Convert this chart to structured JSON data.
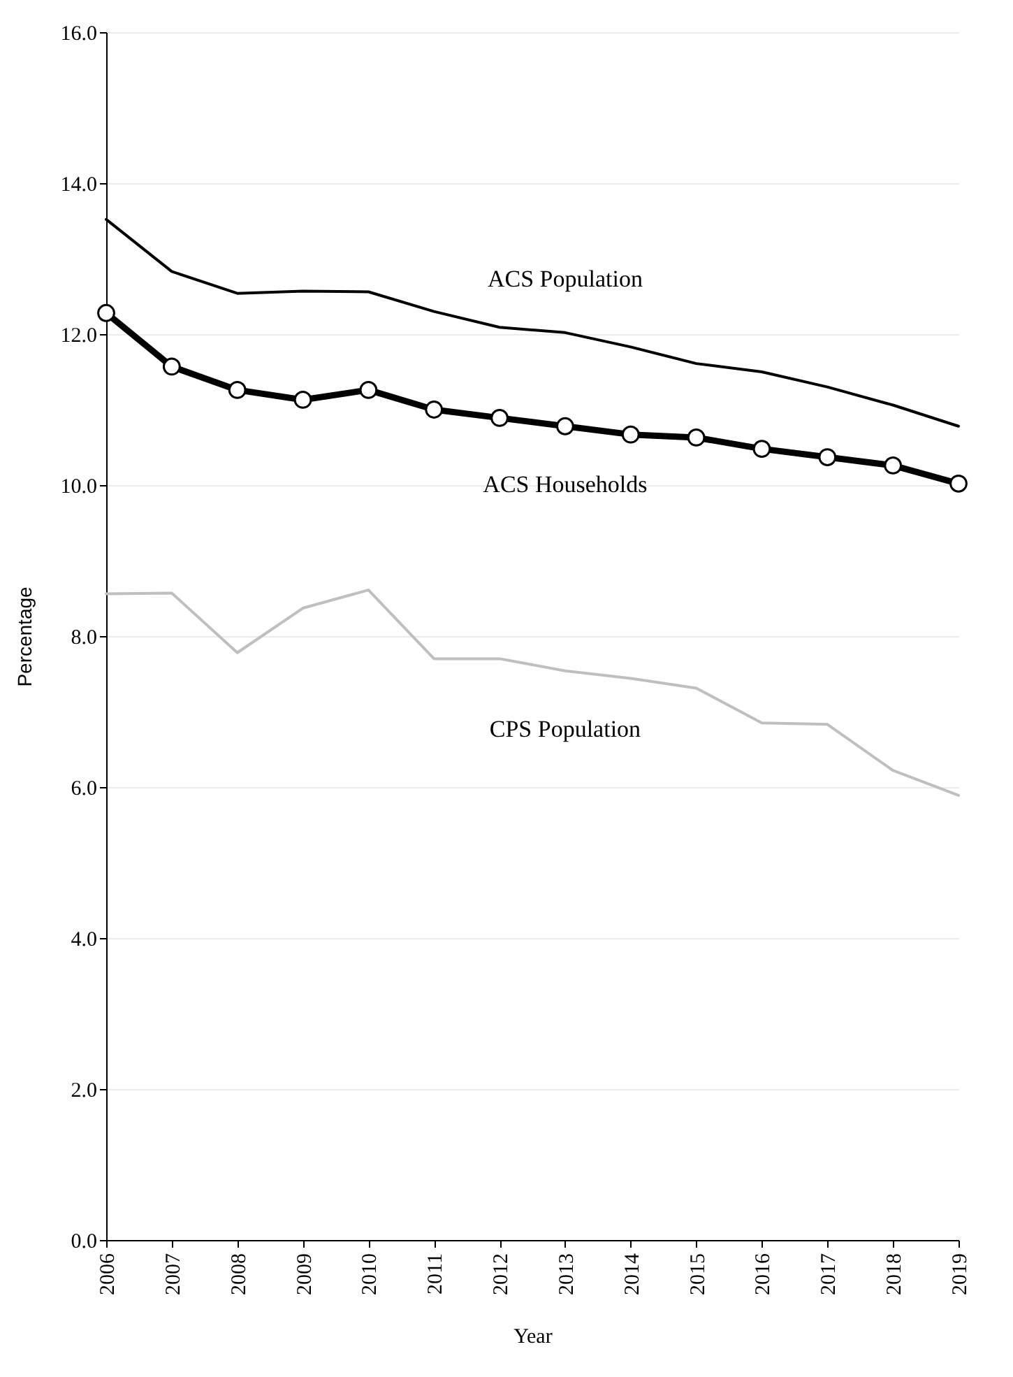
{
  "chart_data": {
    "type": "line",
    "xlabel": "Year",
    "ylabel": "Percentage",
    "categories": [
      "2006",
      "2007",
      "2008",
      "2009",
      "2010",
      "2011",
      "2012",
      "2013",
      "2014",
      "2015",
      "2016",
      "2017",
      "2018",
      "2019"
    ],
    "series": [
      {
        "name": "ACS Population",
        "color": "#000000",
        "marker": "none",
        "values": [
          13.52,
          12.83,
          12.54,
          12.57,
          12.56,
          12.3,
          12.09,
          12.02,
          11.83,
          11.61,
          11.5,
          11.3,
          11.06,
          10.78
        ]
      },
      {
        "name": "ACS Households",
        "color": "#000000",
        "marker": "circle",
        "values": [
          12.28,
          11.57,
          11.26,
          11.13,
          11.26,
          11.0,
          10.89,
          10.78,
          10.67,
          10.63,
          10.48,
          10.37,
          10.26,
          10.02
        ]
      },
      {
        "name": "CPS Population",
        "color": "#bfbfbf",
        "marker": "none",
        "values": [
          8.56,
          8.57,
          7.78,
          8.37,
          8.61,
          7.7,
          7.7,
          7.54,
          7.44,
          7.31,
          6.85,
          6.83,
          6.22,
          5.89
        ]
      }
    ],
    "ylim": [
      0,
      16
    ],
    "yticks": [
      {
        "value": 0,
        "label": "0.0"
      },
      {
        "value": 2,
        "label": "2.0"
      },
      {
        "value": 4,
        "label": "4.0"
      },
      {
        "value": 6,
        "label": "6.0"
      },
      {
        "value": 8,
        "label": "8.0"
      },
      {
        "value": 10,
        "label": "10.0"
      },
      {
        "value": 12,
        "label": "12.0"
      },
      {
        "value": 14,
        "label": "14.0"
      },
      {
        "value": 16,
        "label": "16.0"
      }
    ],
    "grid": "y"
  }
}
